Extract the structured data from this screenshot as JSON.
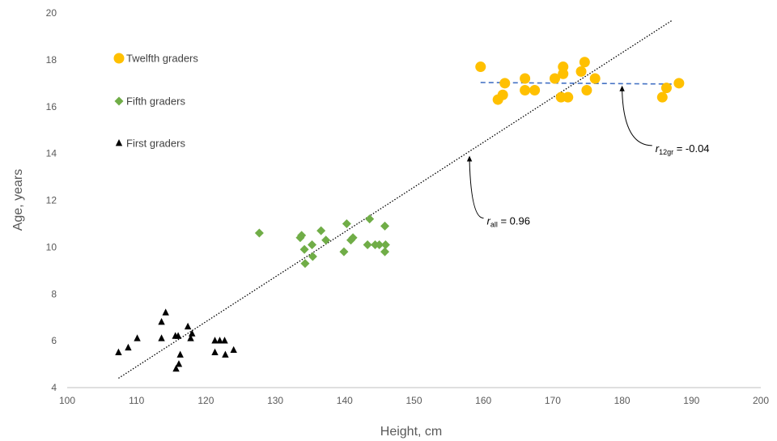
{
  "chart_data": {
    "type": "scatter",
    "xlabel": "Height, cm",
    "ylabel": "Age, years",
    "xlim": [
      100,
      200
    ],
    "ylim": [
      4,
      20
    ],
    "x_ticks": [
      100,
      110,
      120,
      130,
      140,
      150,
      160,
      170,
      180,
      190,
      200
    ],
    "y_ticks": [
      4,
      6,
      8,
      10,
      12,
      14,
      16,
      18,
      20
    ],
    "grid": false,
    "legend_position": "top-left",
    "series": [
      {
        "name": "Twelfth graders",
        "marker": "circle",
        "color": "#FFC000",
        "points": [
          [
            159.6,
            17.7
          ],
          [
            162.1,
            16.3
          ],
          [
            162.8,
            16.5
          ],
          [
            163.1,
            17.0
          ],
          [
            166.0,
            17.2
          ],
          [
            166.0,
            16.7
          ],
          [
            167.4,
            16.7
          ],
          [
            170.3,
            17.2
          ],
          [
            171.5,
            17.7
          ],
          [
            171.5,
            17.4
          ],
          [
            171.2,
            16.4
          ],
          [
            172.2,
            16.4
          ],
          [
            174.1,
            17.5
          ],
          [
            174.6,
            17.9
          ],
          [
            174.9,
            16.7
          ],
          [
            176.1,
            17.2
          ],
          [
            185.8,
            16.4
          ],
          [
            186.4,
            16.8
          ],
          [
            188.2,
            17.0
          ]
        ]
      },
      {
        "name": "Fifth graders",
        "marker": "diamond",
        "color": "#70AD47",
        "points": [
          [
            127.7,
            10.6
          ],
          [
            133.6,
            10.4
          ],
          [
            133.8,
            10.5
          ],
          [
            134.2,
            9.9
          ],
          [
            134.3,
            9.3
          ],
          [
            135.3,
            10.1
          ],
          [
            135.4,
            9.6
          ],
          [
            136.6,
            10.7
          ],
          [
            137.3,
            10.3
          ],
          [
            139.9,
            9.8
          ],
          [
            140.3,
            11.0
          ],
          [
            140.9,
            10.3
          ],
          [
            141.2,
            10.4
          ],
          [
            143.3,
            10.1
          ],
          [
            143.6,
            11.2
          ],
          [
            144.4,
            10.1
          ],
          [
            145.0,
            10.1
          ],
          [
            145.8,
            10.9
          ],
          [
            145.9,
            10.1
          ],
          [
            145.8,
            9.8
          ]
        ]
      },
      {
        "name": "First graders",
        "marker": "triangle",
        "color": "#000000",
        "points": [
          [
            107.4,
            5.5
          ],
          [
            108.8,
            5.7
          ],
          [
            110.1,
            6.1
          ],
          [
            113.6,
            6.1
          ],
          [
            113.6,
            6.8
          ],
          [
            114.2,
            7.2
          ],
          [
            115.6,
            6.2
          ],
          [
            115.7,
            4.8
          ],
          [
            116.0,
            6.2
          ],
          [
            116.1,
            5.0
          ],
          [
            116.3,
            5.4
          ],
          [
            117.4,
            6.6
          ],
          [
            117.8,
            6.1
          ],
          [
            118.0,
            6.3
          ],
          [
            121.3,
            6.0
          ],
          [
            121.3,
            5.5
          ],
          [
            122.0,
            6.0
          ],
          [
            122.7,
            6.0
          ],
          [
            122.8,
            5.4
          ],
          [
            124.0,
            5.6
          ]
        ]
      }
    ],
    "trendlines": [
      {
        "id": "all",
        "style": "dotted",
        "color": "#000000",
        "from": [
          107.4,
          4.4
        ],
        "to": [
          187.3,
          19.7
        ]
      },
      {
        "id": "twelfth",
        "style": "dashed",
        "color": "#4472C4",
        "from": [
          159.6,
          17.03
        ],
        "to": [
          188.3,
          16.96
        ]
      }
    ],
    "annotations": [
      {
        "id": "r-all",
        "base": "r",
        "sub": "all",
        "suffix": " = 0.96",
        "arrow_tip": [
          158.0,
          13.9
        ],
        "label_at": [
          160.5,
          11.1
        ]
      },
      {
        "id": "r-12gr",
        "base": "r",
        "sub": "12gr",
        "suffix": " = -0.04",
        "arrow_tip": [
          180.0,
          16.9
        ],
        "label_at": [
          184.8,
          14.2
        ]
      }
    ]
  }
}
